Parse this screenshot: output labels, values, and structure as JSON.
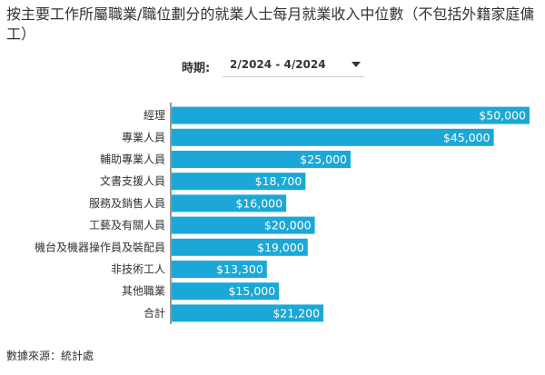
{
  "title": "按主要工作所屬職業/職位劃分的就業人士每月就業收入中位數（不包括外籍家庭傭工）",
  "period": {
    "label": "時期:",
    "value": "2/2024 - 4/2024"
  },
  "source": "數據來源：統計處",
  "colors": {
    "bar": "#1ba8d8",
    "axis": "#333333"
  },
  "chart_data": {
    "type": "bar",
    "orientation": "horizontal",
    "title": "按主要工作所屬職業/職位劃分的就業人士每月就業收入中位數（不包括外籍家庭傭工）",
    "xlabel": "",
    "ylabel": "",
    "xlim": [
      0,
      50000
    ],
    "categories": [
      "經理",
      "專業人員",
      "輔助專業人員",
      "文書支援人員",
      "服務及銷售人員",
      "工藝及有關人員",
      "機台及機器操作員及裝配員",
      "非技術工人",
      "其他職業",
      "合計"
    ],
    "values": [
      50000,
      45000,
      25000,
      18700,
      16000,
      20000,
      19000,
      13300,
      15000,
      21200
    ],
    "value_labels": [
      "$50,000",
      "$45,000",
      "$25,000",
      "$18,700",
      "$16,000",
      "$20,000",
      "$19,000",
      "$13,300",
      "$15,000",
      "$21,200"
    ]
  }
}
